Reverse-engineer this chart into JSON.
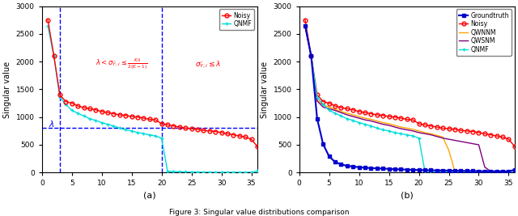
{
  "ylim": [
    0,
    3000
  ],
  "xlim": [
    0,
    36
  ],
  "ylabel": "Singular value",
  "lambda_val": 800,
  "vline1": 3,
  "vline2": 20,
  "n_points": 36,
  "colors": {
    "noisy": "#FF0000",
    "qnmf_a": "#00DDDD",
    "groundtruth": "#0000CC",
    "qwnnm": "#FFA500",
    "qwsnm": "#800080",
    "qnmf_b": "#00DDDD"
  },
  "noisy": [
    2750,
    2110,
    1400,
    1280,
    1250,
    1200,
    1170,
    1150,
    1130,
    1100,
    1080,
    1060,
    1040,
    1030,
    1010,
    1000,
    980,
    960,
    950,
    880,
    860,
    840,
    820,
    800,
    790,
    780,
    760,
    750,
    740,
    720,
    700,
    680,
    660,
    640,
    600,
    470
  ],
  "groundtruth": [
    2640,
    2100,
    970,
    510,
    290,
    190,
    145,
    120,
    108,
    95,
    85,
    80,
    75,
    70,
    65,
    60,
    55,
    52,
    48,
    45,
    42,
    40,
    38,
    36,
    34,
    32,
    30,
    28,
    26,
    25,
    24,
    23,
    22,
    21,
    20,
    50
  ],
  "qnmf_a": [
    2640,
    2100,
    1360,
    1230,
    1120,
    1070,
    1020,
    970,
    940,
    900,
    870,
    840,
    800,
    770,
    750,
    720,
    700,
    680,
    660,
    620,
    25,
    18,
    14,
    11,
    9,
    8,
    7,
    6,
    5,
    5,
    4,
    4,
    3,
    3,
    3,
    30
  ],
  "qwnnm": [
    2640,
    2100,
    1310,
    1220,
    1180,
    1140,
    1100,
    1070,
    1040,
    1010,
    980,
    960,
    930,
    900,
    880,
    850,
    820,
    800,
    780,
    750,
    720,
    700,
    670,
    640,
    400,
    25,
    18,
    14,
    11,
    9,
    8,
    7,
    6,
    5,
    4,
    50
  ],
  "qwsnm": [
    2640,
    2100,
    1290,
    1180,
    1150,
    1120,
    1080,
    1040,
    1010,
    980,
    950,
    930,
    900,
    870,
    850,
    820,
    790,
    770,
    750,
    720,
    700,
    680,
    650,
    620,
    600,
    580,
    560,
    540,
    520,
    500,
    100,
    18,
    14,
    11,
    9,
    50
  ],
  "caption": "Figure 3: Singular value distributions comparison"
}
